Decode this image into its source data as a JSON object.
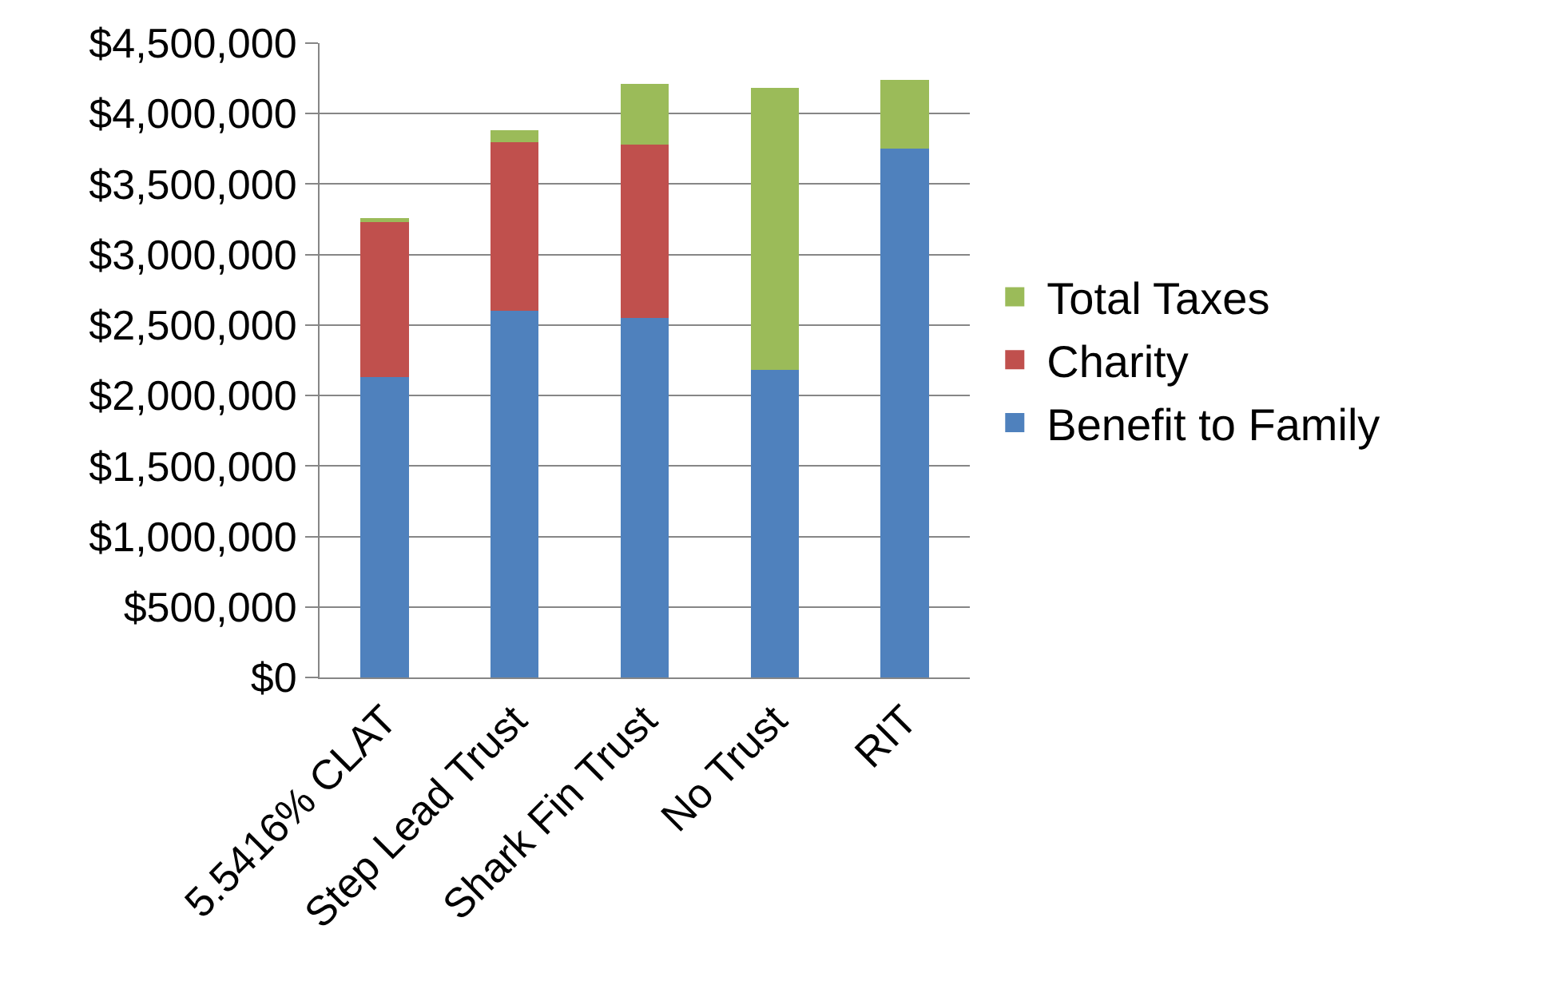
{
  "chart_data": {
    "type": "bar",
    "stacked": true,
    "categories": [
      "5.5416% CLAT",
      "Step Lead Trust",
      "Shark Fin Trust",
      "No Trust",
      "RIT"
    ],
    "series": [
      {
        "name": "Benefit to Family",
        "color": "#4f81bd",
        "values": [
          2130000,
          2600000,
          2550000,
          2180000,
          3750000
        ]
      },
      {
        "name": "Charity",
        "color": "#c0504d",
        "values": [
          1100000,
          1200000,
          1230000,
          0,
          0
        ]
      },
      {
        "name": "Total Taxes",
        "color": "#9bbb59",
        "values": [
          30000,
          85000,
          430000,
          2000000,
          490000
        ]
      }
    ],
    "ylim": [
      0,
      4500000
    ],
    "yticks": [
      {
        "value": 0,
        "label": "$0"
      },
      {
        "value": 500000,
        "label": "$500,000"
      },
      {
        "value": 1000000,
        "label": "$1,000,000"
      },
      {
        "value": 1500000,
        "label": "$1,500,000"
      },
      {
        "value": 2000000,
        "label": "$2,000,000"
      },
      {
        "value": 2500000,
        "label": "$2,500,000"
      },
      {
        "value": 3000000,
        "label": "$3,000,000"
      },
      {
        "value": 3500000,
        "label": "$3,500,000"
      },
      {
        "value": 4000000,
        "label": "$4,000,000"
      },
      {
        "value": 4500000,
        "label": "$4,500,000"
      }
    ],
    "grid": "y",
    "legend": "right"
  }
}
